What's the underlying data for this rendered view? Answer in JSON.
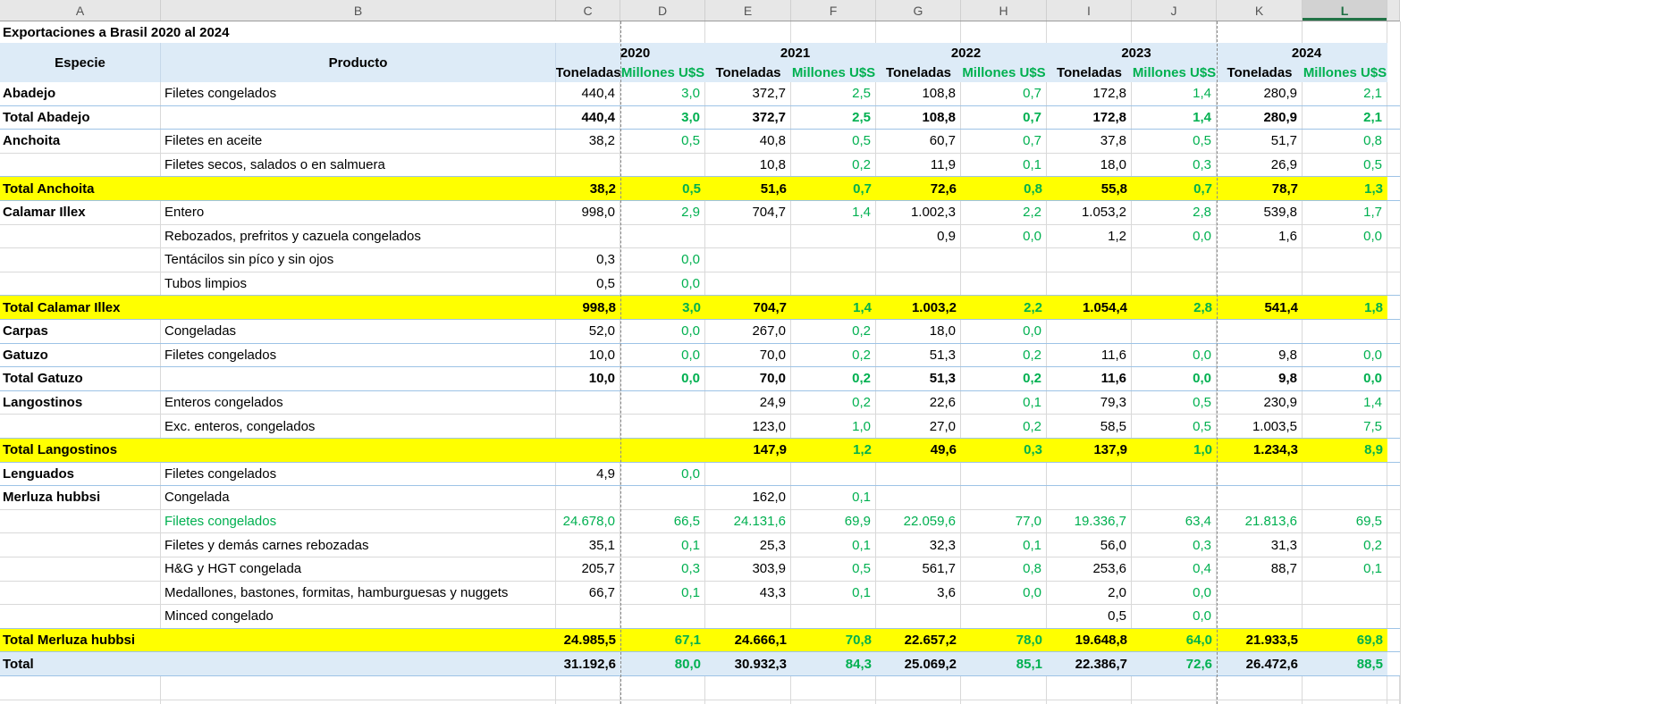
{
  "title": "Exportaciones a Brasil 2020 al 2024",
  "column_letters": [
    "A",
    "B",
    "C",
    "D",
    "E",
    "F",
    "G",
    "H",
    "I",
    "J",
    "K",
    "L"
  ],
  "selected_column": "L",
  "colors": {
    "green_value": "#00B050",
    "total_yellow": "#FFFF00",
    "header_blue": "#DDEBF7",
    "selected_column_green": "#217346"
  },
  "headers": {
    "especie": "Especie",
    "producto": "Producto",
    "toneladas": "Toneladas",
    "millones": "Millones U$S"
  },
  "years": [
    "2020",
    "2021",
    "2022",
    "2023",
    "2024"
  ],
  "rows": [
    {
      "especie": "Abadejo",
      "producto": "Filetes congelados",
      "style": "normal",
      "values": [
        "440,4",
        "3,0",
        "372,7",
        "2,5",
        "108,8",
        "0,7",
        "172,8",
        "1,4",
        "280,9",
        "2,1"
      ]
    },
    {
      "especie": "Total Abadejo",
      "producto": "",
      "style": "total-white",
      "values": [
        "440,4",
        "3,0",
        "372,7",
        "2,5",
        "108,8",
        "0,7",
        "172,8",
        "1,4",
        "280,9",
        "2,1"
      ]
    },
    {
      "especie": "Anchoita",
      "producto": "Filetes en aceite",
      "style": "normal",
      "values": [
        "38,2",
        "0,5",
        "40,8",
        "0,5",
        "60,7",
        "0,7",
        "37,8",
        "0,5",
        "51,7",
        "0,8"
      ]
    },
    {
      "especie": "",
      "producto": "Filetes secos, salados o en salmuera",
      "style": "normal",
      "values": [
        "",
        "",
        "10,8",
        "0,2",
        "11,9",
        "0,1",
        "18,0",
        "0,3",
        "26,9",
        "0,5"
      ]
    },
    {
      "especie": "Total Anchoita",
      "producto": "",
      "style": "total-yellow",
      "values": [
        "38,2",
        "0,5",
        "51,6",
        "0,7",
        "72,6",
        "0,8",
        "55,8",
        "0,7",
        "78,7",
        "1,3"
      ]
    },
    {
      "especie": "Calamar Illex",
      "producto": "Entero",
      "style": "normal",
      "values": [
        "998,0",
        "2,9",
        "704,7",
        "1,4",
        "1.002,3",
        "2,2",
        "1.053,2",
        "2,8",
        "539,8",
        "1,7"
      ]
    },
    {
      "especie": "",
      "producto": "Rebozados, prefritos y cazuela congelados",
      "style": "normal",
      "values": [
        "",
        "",
        "",
        "",
        "0,9",
        "0,0",
        "1,2",
        "0,0",
        "1,6",
        "0,0"
      ]
    },
    {
      "especie": "",
      "producto": "Tentácilos sin píco y sin ojos",
      "style": "normal",
      "values": [
        "0,3",
        "0,0",
        "",
        "",
        "",
        "",
        "",
        "",
        "",
        ""
      ]
    },
    {
      "especie": "",
      "producto": "Tubos limpios",
      "style": "normal",
      "values": [
        "0,5",
        "0,0",
        "",
        "",
        "",
        "",
        "",
        "",
        "",
        ""
      ]
    },
    {
      "especie": "Total Calamar Illex",
      "producto": "",
      "style": "total-yellow",
      "values": [
        "998,8",
        "3,0",
        "704,7",
        "1,4",
        "1.003,2",
        "2,2",
        "1.054,4",
        "2,8",
        "541,4",
        "1,8"
      ]
    },
    {
      "especie": "Carpas",
      "producto": "Congeladas",
      "style": "normal",
      "sep": true,
      "values": [
        "52,0",
        "0,0",
        "267,0",
        "0,2",
        "18,0",
        "0,0",
        "",
        "",
        "",
        ""
      ]
    },
    {
      "especie": "Gatuzo",
      "producto": "Filetes congelados",
      "style": "normal",
      "values": [
        "10,0",
        "0,0",
        "70,0",
        "0,2",
        "51,3",
        "0,2",
        "11,6",
        "0,0",
        "9,8",
        "0,0"
      ]
    },
    {
      "especie": "Total Gatuzo",
      "producto": "",
      "style": "total-white",
      "values": [
        "10,0",
        "0,0",
        "70,0",
        "0,2",
        "51,3",
        "0,2",
        "11,6",
        "0,0",
        "9,8",
        "0,0"
      ]
    },
    {
      "especie": "Langostinos",
      "producto": "Enteros congelados",
      "style": "normal",
      "values": [
        "",
        "",
        "24,9",
        "0,2",
        "22,6",
        "0,1",
        "79,3",
        "0,5",
        "230,9",
        "1,4"
      ]
    },
    {
      "especie": "",
      "producto": "Exc. enteros, congelados",
      "style": "normal",
      "values": [
        "",
        "",
        "123,0",
        "1,0",
        "27,0",
        "0,2",
        "58,5",
        "0,5",
        "1.003,5",
        "7,5"
      ]
    },
    {
      "especie": "Total Langostinos",
      "producto": "",
      "style": "total-yellow",
      "values": [
        "",
        "",
        "147,9",
        "1,2",
        "49,6",
        "0,3",
        "137,9",
        "1,0",
        "1.234,3",
        "8,9"
      ]
    },
    {
      "especie": "Lenguados",
      "producto": "Filetes congelados",
      "style": "normal",
      "sep": true,
      "values": [
        "4,9",
        "0,0",
        "",
        "",
        "",
        "",
        "",
        "",
        "",
        ""
      ]
    },
    {
      "especie": "Merluza hubbsi",
      "producto": "Congelada",
      "style": "normal",
      "values": [
        "",
        "",
        "162,0",
        "0,1",
        "",
        "",
        "",
        "",
        "",
        ""
      ]
    },
    {
      "especie": "",
      "producto": "Filetes congelados",
      "style": "green-row",
      "values": [
        "24.678,0",
        "66,5",
        "24.131,6",
        "69,9",
        "22.059,6",
        "77,0",
        "19.336,7",
        "63,4",
        "21.813,6",
        "69,5"
      ]
    },
    {
      "especie": "",
      "producto": "Filetes y demás carnes rebozadas",
      "style": "normal",
      "values": [
        "35,1",
        "0,1",
        "25,3",
        "0,1",
        "32,3",
        "0,1",
        "56,0",
        "0,3",
        "31,3",
        "0,2"
      ]
    },
    {
      "especie": "",
      "producto": "H&G y HGT congelada",
      "style": "normal",
      "values": [
        "205,7",
        "0,3",
        "303,9",
        "0,5",
        "561,7",
        "0,8",
        "253,6",
        "0,4",
        "88,7",
        "0,1"
      ]
    },
    {
      "especie": "",
      "producto": "Medallones, bastones, formitas, hamburguesas y nuggets",
      "style": "normal",
      "values": [
        "66,7",
        "0,1",
        "43,3",
        "0,1",
        "3,6",
        "0,0",
        "2,0",
        "0,0",
        "",
        ""
      ]
    },
    {
      "especie": "",
      "producto": "Minced congelado",
      "style": "normal",
      "values": [
        "",
        "",
        "",
        "",
        "",
        "",
        "0,5",
        "0,0",
        "",
        ""
      ]
    },
    {
      "especie": "Total Merluza hubbsi",
      "producto": "",
      "style": "total-yellow",
      "values": [
        "24.985,5",
        "67,1",
        "24.666,1",
        "70,8",
        "22.657,2",
        "78,0",
        "19.648,8",
        "64,0",
        "21.933,5",
        "69,8"
      ]
    },
    {
      "especie": "Total",
      "producto": "",
      "style": "total-blue",
      "values": [
        "31.192,6",
        "80,0",
        "30.932,3",
        "84,3",
        "25.069,2",
        "85,1",
        "22.386,7",
        "72,6",
        "26.472,6",
        "88,5"
      ]
    }
  ]
}
